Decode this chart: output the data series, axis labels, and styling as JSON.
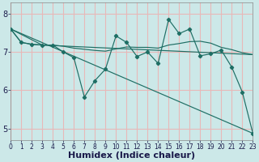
{
  "xlabel": "Humidex (Indice chaleur)",
  "bg_color": "#cce8e8",
  "grid_color": "#e8b8b8",
  "line_color": "#1e6e64",
  "xlim": [
    0,
    23
  ],
  "ylim": [
    4.7,
    8.3
  ],
  "yticks": [
    5,
    6,
    7,
    8
  ],
  "xticks": [
    0,
    1,
    2,
    3,
    4,
    5,
    6,
    7,
    8,
    9,
    10,
    11,
    12,
    13,
    14,
    15,
    16,
    17,
    18,
    19,
    20,
    21,
    22,
    23
  ],
  "line1_x": [
    0,
    1,
    2,
    3,
    4,
    5,
    6,
    7,
    8,
    9,
    10,
    11,
    12,
    13,
    14,
    15,
    16,
    17,
    18,
    19,
    20,
    21,
    22,
    23
  ],
  "line1_y": [
    7.6,
    7.25,
    7.2,
    7.18,
    7.18,
    7.0,
    6.85,
    5.82,
    6.25,
    6.55,
    7.42,
    7.25,
    6.88,
    7.0,
    6.7,
    7.85,
    7.48,
    7.6,
    6.9,
    6.95,
    7.05,
    6.6,
    5.95,
    4.87
  ],
  "line2_x": [
    0,
    1,
    2,
    3,
    4,
    5,
    6,
    7,
    8,
    9,
    10,
    11,
    12,
    13,
    14,
    15,
    16,
    17,
    18,
    19,
    20,
    21,
    22,
    23
  ],
  "line2_y": [
    7.6,
    7.25,
    7.2,
    7.18,
    7.18,
    7.15,
    7.1,
    7.07,
    7.04,
    7.02,
    7.08,
    7.13,
    7.12,
    7.12,
    7.1,
    7.18,
    7.22,
    7.27,
    7.28,
    7.23,
    7.12,
    7.06,
    6.98,
    6.93
  ],
  "line3_x": [
    0,
    23
  ],
  "line3_y": [
    7.6,
    4.87
  ],
  "line4_x": [
    0,
    3,
    23
  ],
  "line4_y": [
    7.6,
    7.18,
    6.93
  ],
  "fontsize_label": 8,
  "fontsize_tick": 7
}
